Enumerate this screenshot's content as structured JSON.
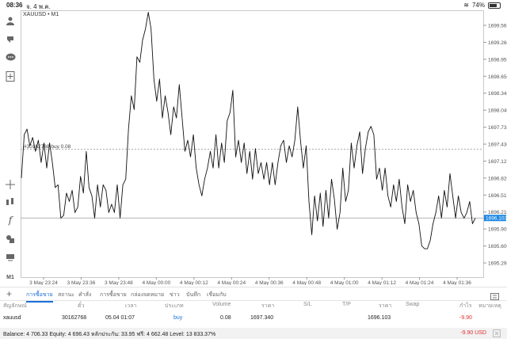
{
  "status_bar": {
    "time": "08:36",
    "date": "จ. 4 พ.ค.",
    "battery": "74%"
  },
  "chart": {
    "symbol_label": "XAUUSD • M1",
    "order_line_label": "#30162768 buy 0.08",
    "bid_price": "1696.103",
    "price_ticks": [
      "1699.565",
      "1699.260",
      "1698.955",
      "1698.650",
      "1698.345",
      "1698.040",
      "1697.735",
      "1697.430",
      "1697.125",
      "1696.820",
      "1696.515",
      "1696.210",
      "1695.905",
      "1695.600",
      "1695.295"
    ],
    "time_ticks": [
      "3 May 23:24",
      "3 May 23:36",
      "3 May 23:48",
      "4 May 00:00",
      "4 May 00:12",
      "4 May 00:24",
      "4 May 00:36",
      "4 May 00:48",
      "4 May 01:00",
      "4 May 01:12",
      "4 May 01:24",
      "4 May 01:36"
    ],
    "prices": [
      1696.82,
      1697.6,
      1697.7,
      1697.4,
      1697.55,
      1697.3,
      1697.5,
      1697.1,
      1697.45,
      1697.0,
      1697.45,
      1697.1,
      1696.65,
      1696.7,
      1696.1,
      1696.15,
      1696.55,
      1696.4,
      1696.6,
      1696.2,
      1696.3,
      1696.85,
      1696.55,
      1697.3,
      1696.65,
      1696.5,
      1696.1,
      1696.7,
      1696.3,
      1696.7,
      1696.6,
      1696.2,
      1696.35,
      1696.2,
      1696.7,
      1696.1,
      1696.7,
      1696.8,
      1697.7,
      1698.3,
      1698.05,
      1699.0,
      1698.9,
      1699.3,
      1699.5,
      1699.8,
      1699.5,
      1698.6,
      1698.2,
      1698.6,
      1697.9,
      1698.3,
      1698.0,
      1697.6,
      1698.1,
      1697.9,
      1698.5,
      1697.9,
      1697.3,
      1697.5,
      1697.2,
      1697.6,
      1697.0,
      1696.7,
      1696.5,
      1696.8,
      1697.0,
      1697.3,
      1697.0,
      1697.6,
      1697.0,
      1697.45,
      1697.1,
      1697.85,
      1698.0,
      1698.4,
      1697.2,
      1697.5,
      1697.1,
      1697.45,
      1696.9,
      1697.3,
      1696.8,
      1697.35,
      1696.9,
      1697.1,
      1696.8,
      1697.1,
      1696.7,
      1697.1,
      1696.7,
      1697.1,
      1697.4,
      1697.5,
      1697.1,
      1697.4,
      1697.2,
      1697.5,
      1698.1,
      1697.5,
      1697.0,
      1697.4,
      1696.4,
      1695.8,
      1696.5,
      1696.05,
      1696.55,
      1695.95,
      1696.6,
      1696.1,
      1696.8,
      1696.45,
      1695.9,
      1696.2,
      1697.0,
      1696.4,
      1696.6,
      1697.45,
      1697.0,
      1697.4,
      1697.65,
      1696.9,
      1697.35,
      1697.65,
      1697.75,
      1697.6,
      1696.8,
      1697.0,
      1696.6,
      1697.0,
      1696.5,
      1696.3,
      1696.7,
      1696.4,
      1696.8,
      1696.3,
      1696.0,
      1696.7,
      1696.4,
      1696.6,
      1696.2,
      1696.0,
      1695.6,
      1695.55,
      1695.55,
      1695.7,
      1696.0,
      1696.2,
      1696.5,
      1696.1,
      1696.6,
      1696.3,
      1696.9,
      1696.5,
      1696.1,
      1696.5,
      1696.2,
      1696.1,
      1696.2,
      1696.4,
      1696.0,
      1696.1
    ]
  },
  "tabs": [
    "การซื้อขาย",
    "สถานะ",
    "คำสั่ง",
    "การซื้อขาย",
    "กล่องจดหมาย",
    "ข่าว",
    "บันทึก",
    "เชื่อมกับ"
  ],
  "table": {
    "headers": [
      "สัญลักษณ์",
      "ตั๋ว",
      "เวลา",
      "ประเภท",
      "Volume",
      "ราคา",
      "S/L",
      "T/P",
      "ราคา",
      "Swap",
      "กำไร",
      "หมายเหตุ"
    ],
    "row": [
      "xauusd",
      "30162768",
      "05.04 01:07",
      "buy",
      "0.08",
      "1697.340",
      "",
      "",
      "1696.103",
      "",
      "-9.90",
      ""
    ]
  },
  "balance": {
    "text": "Balance: 4 706.33 Equity: 4 696.43 หลักประกัน: 33.95 ฟรี: 4 662.48 Level: 13 833.37%",
    "profit": "-9.90 USD"
  },
  "colors": {
    "accent": "#1a6fd8",
    "loss": "#e03030",
    "bid_label": "#1e88e5"
  },
  "icons": [
    "user-icon",
    "transfer-icon",
    "chat-icon",
    "add-chart-icon",
    "crosshair-icon",
    "indicator-icon",
    "function-icon",
    "objects-icon",
    "layers-icon",
    "timeframe-icon"
  ]
}
